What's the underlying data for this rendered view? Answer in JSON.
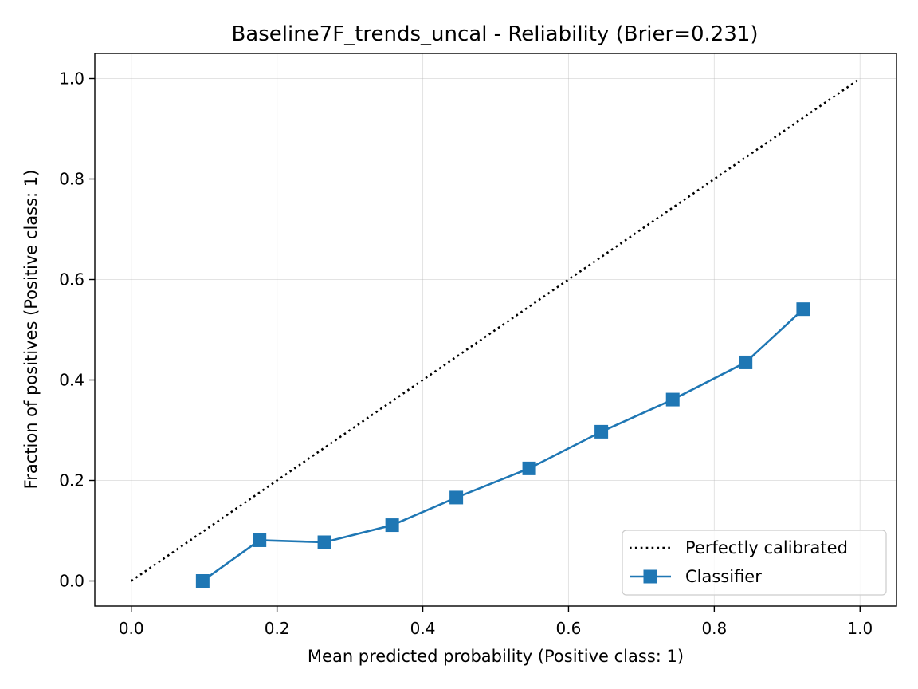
{
  "chart_data": {
    "type": "line",
    "title": "Baseline7F_trends_uncal - Reliability (Brier=0.231)",
    "xlabel": "Mean predicted probability (Positive class: 1)",
    "ylabel": "Fraction of positives (Positive class: 1)",
    "xlim": [
      -0.05,
      1.05
    ],
    "ylim": [
      -0.05,
      1.05
    ],
    "xticks": [
      0.0,
      0.2,
      0.4,
      0.6,
      0.8,
      1.0
    ],
    "yticks": [
      0.0,
      0.2,
      0.4,
      0.6,
      0.8,
      1.0
    ],
    "xtick_labels": [
      "0.0",
      "0.2",
      "0.4",
      "0.6",
      "0.8",
      "1.0"
    ],
    "ytick_labels": [
      "0.0",
      "0.2",
      "0.4",
      "0.6",
      "0.8",
      "1.0"
    ],
    "grid": true,
    "legend_position": "bottom-right",
    "series": [
      {
        "name": "Perfectly calibrated",
        "style": "dotted",
        "color": "#000000",
        "marker": "none",
        "x": [
          0.0,
          1.0
        ],
        "y": [
          0.0,
          1.0
        ]
      },
      {
        "name": "Classifier",
        "style": "solid",
        "color": "#1f77b4",
        "marker": "square",
        "x": [
          0.098,
          0.176,
          0.265,
          0.358,
          0.446,
          0.546,
          0.645,
          0.743,
          0.843,
          0.922
        ],
        "y": [
          0.0,
          0.081,
          0.077,
          0.111,
          0.166,
          0.224,
          0.297,
          0.361,
          0.435,
          0.541
        ]
      }
    ]
  }
}
